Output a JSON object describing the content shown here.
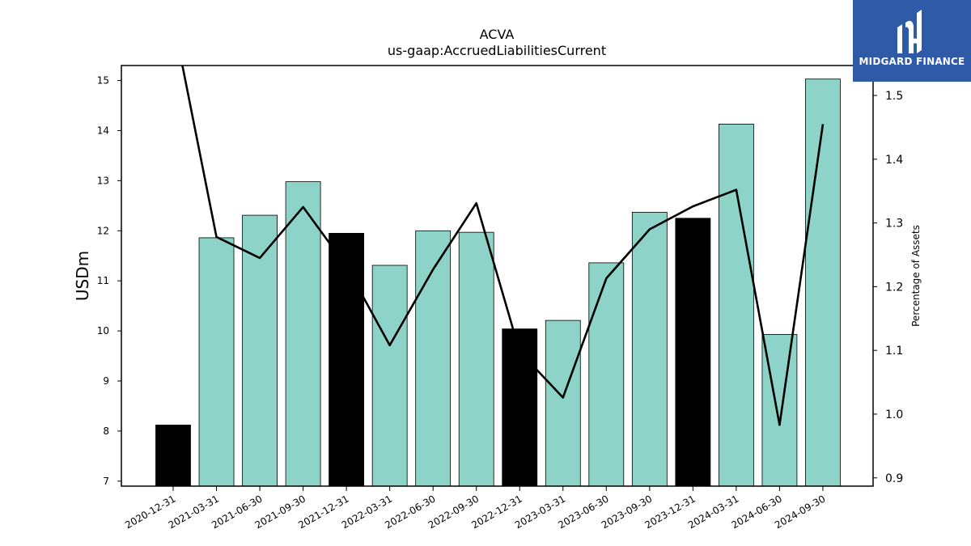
{
  "chart_data": {
    "type": "bar",
    "title": "ACVA",
    "subtitle": "us-gaap:AccruedLiabilitiesCurrent",
    "ylabel": "USDm",
    "y2label": "Percentage of Assets",
    "ylim": [
      6.9,
      15.3
    ],
    "y2lim": [
      0.887,
      1.547
    ],
    "yticks": [
      7,
      8,
      9,
      10,
      11,
      12,
      13,
      14,
      15
    ],
    "y2ticks": [
      0.9,
      1.0,
      1.1,
      1.2,
      1.3,
      1.4,
      1.5
    ],
    "categories": [
      "2020-12-31",
      "2021-03-31",
      "2021-06-30",
      "2021-09-30",
      "2021-12-31",
      "2022-03-31",
      "2022-06-30",
      "2022-09-30",
      "2022-12-31",
      "2023-03-31",
      "2023-06-30",
      "2023-09-30",
      "2023-12-31",
      "2024-03-31",
      "2024-06-30",
      "2024-09-30"
    ],
    "series": [
      {
        "type": "bar",
        "values": [
          8.12,
          11.86,
          12.31,
          12.98,
          11.95,
          11.31,
          12.0,
          11.97,
          10.04,
          10.21,
          11.36,
          12.37,
          12.25,
          14.13,
          9.93,
          15.03
        ],
        "colors": [
          "#000000",
          "#8dd3c7",
          "#8dd3c7",
          "#8dd3c7",
          "#000000",
          "#8dd3c7",
          "#8dd3c7",
          "#8dd3c7",
          "#000000",
          "#8dd3c7",
          "#8dd3c7",
          "#8dd3c7",
          "#000000",
          "#8dd3c7",
          "#8dd3c7",
          "#8dd3c7"
        ]
      },
      {
        "type": "line",
        "axis": "right",
        "color": "#000000",
        "values": [
          1.62,
          1.278,
          1.245,
          1.325,
          1.232,
          1.108,
          1.227,
          1.331,
          1.098,
          1.026,
          1.213,
          1.29,
          1.326,
          1.352,
          0.983,
          1.455
        ]
      }
    ],
    "grid": false
  },
  "logo": {
    "text": "MIDGARD FINANCE"
  }
}
